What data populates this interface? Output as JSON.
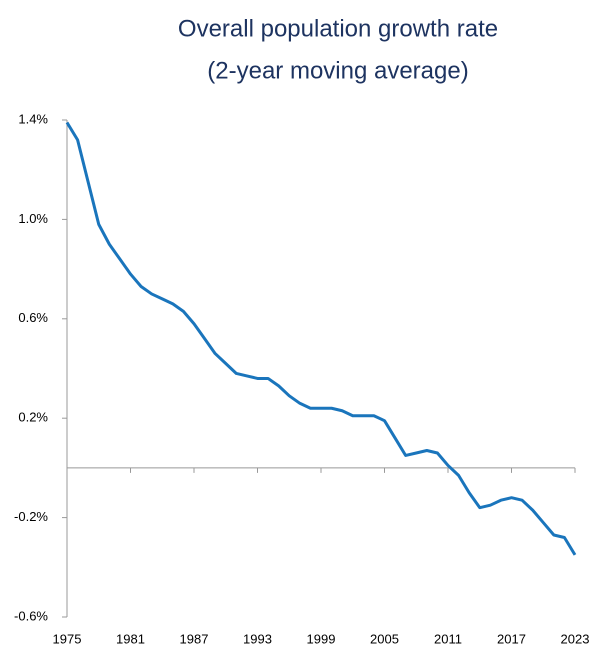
{
  "chart_data": {
    "type": "line",
    "title": [
      "Overall population growth rate",
      "(2-year moving average)"
    ],
    "x": [
      1975,
      1976,
      1977,
      1978,
      1979,
      1980,
      1981,
      1982,
      1983,
      1984,
      1985,
      1986,
      1987,
      1988,
      1989,
      1990,
      1991,
      1992,
      1993,
      1994,
      1995,
      1996,
      1997,
      1998,
      1999,
      2000,
      2001,
      2002,
      2003,
      2004,
      2005,
      2006,
      2007,
      2008,
      2009,
      2010,
      2011,
      2012,
      2013,
      2014,
      2015,
      2016,
      2017,
      2018,
      2019,
      2020,
      2021,
      2022,
      2023
    ],
    "series": [
      {
        "name": "Overall population growth rate",
        "color": "#1a75bc",
        "values": [
          1.39,
          1.32,
          1.15,
          0.98,
          0.9,
          0.84,
          0.78,
          0.73,
          0.7,
          0.68,
          0.66,
          0.63,
          0.58,
          0.52,
          0.46,
          0.42,
          0.38,
          0.37,
          0.36,
          0.36,
          0.33,
          0.29,
          0.26,
          0.24,
          0.24,
          0.24,
          0.23,
          0.21,
          0.21,
          0.21,
          0.19,
          0.12,
          0.05,
          0.06,
          0.07,
          0.06,
          0.01,
          -0.03,
          -0.1,
          -0.16,
          -0.15,
          -0.13,
          -0.12,
          -0.13,
          -0.17,
          -0.22,
          -0.27,
          -0.28,
          -0.35
        ]
      }
    ],
    "xlim": [
      1975,
      2023
    ],
    "xticks": [
      1975,
      1981,
      1987,
      1993,
      1999,
      2005,
      2011,
      2017,
      2023
    ],
    "ylim": [
      -0.6,
      1.4
    ],
    "yticks": [
      {
        "value": -0.6,
        "label": "-0.6%"
      },
      {
        "value": -0.2,
        "label": "-0.2%"
      },
      {
        "value": 0.2,
        "label": "0.2%"
      },
      {
        "value": 0.6,
        "label": "0.6%"
      },
      {
        "value": 1.0,
        "label": "1.0%"
      },
      {
        "value": 1.4,
        "label": "1.4%"
      }
    ]
  }
}
